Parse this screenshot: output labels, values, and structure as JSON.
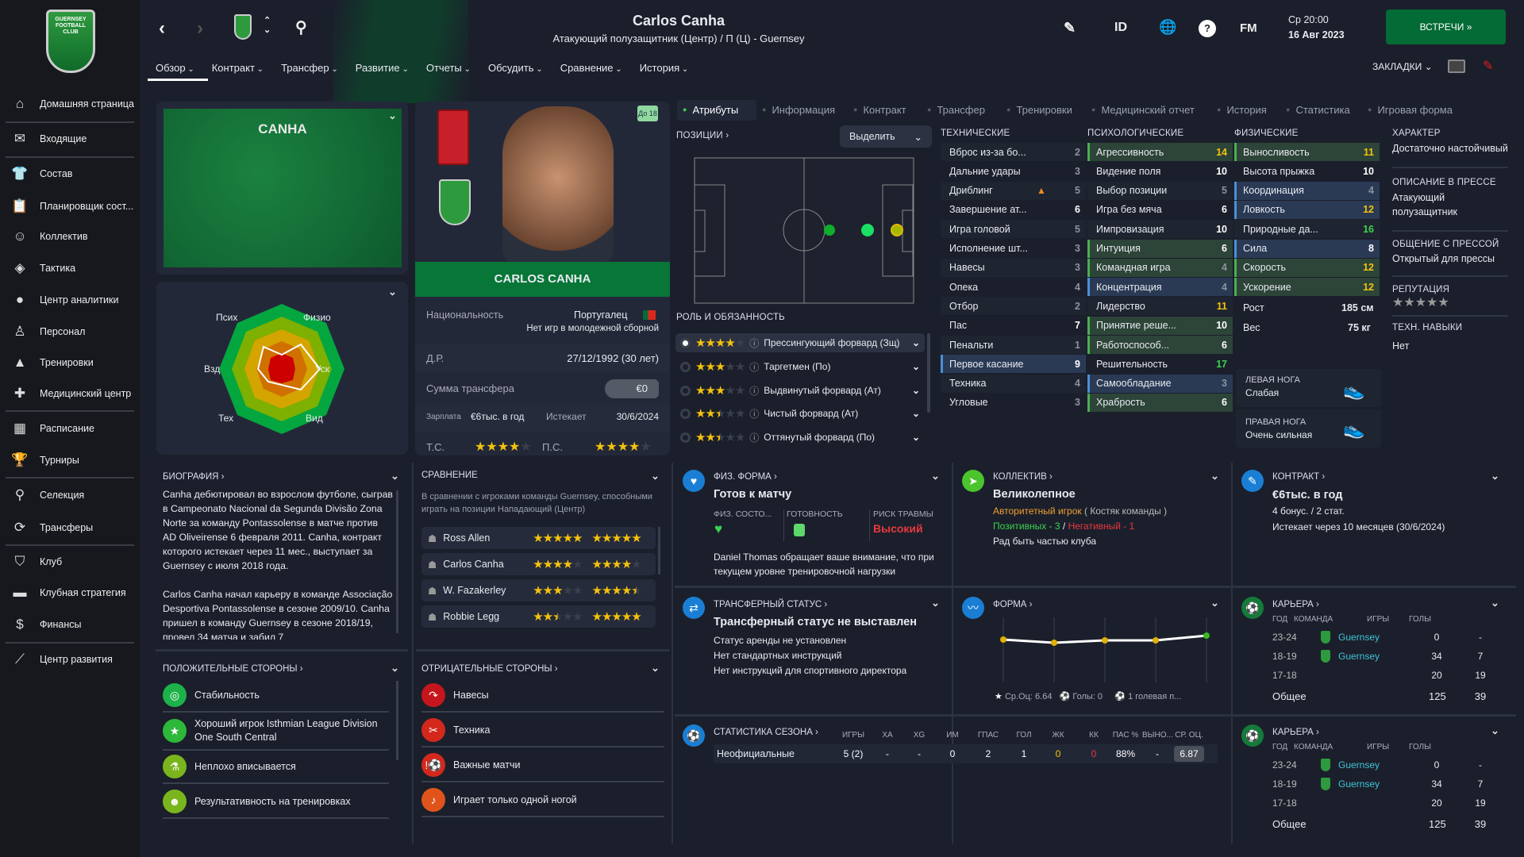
{
  "sidebar": {
    "club_logo_text": "GUERNSEY FOOTBALL CLUB",
    "items": [
      {
        "label": "Домашняя страница",
        "icon": "home-icon",
        "glyph": "⌂"
      },
      {
        "label": "Входящие",
        "icon": "mail-icon",
        "glyph": "✉"
      },
      {
        "label": "Состав",
        "icon": "shirt-icon",
        "glyph": "👕"
      },
      {
        "label": "Планировщик сост...",
        "icon": "clipboard-icon",
        "glyph": "📋"
      },
      {
        "label": "Коллектив",
        "icon": "brain-head-icon",
        "glyph": "☺"
      },
      {
        "label": "Тактика",
        "icon": "tactics-icon",
        "glyph": "◈"
      },
      {
        "label": "Центр аналитики",
        "icon": "analytics-icon",
        "glyph": "●"
      },
      {
        "label": "Персонал",
        "icon": "staff-icon",
        "glyph": "♙"
      },
      {
        "label": "Тренировки",
        "icon": "cone-icon",
        "glyph": "▲"
      },
      {
        "label": "Медицинский центр",
        "icon": "medkit-icon",
        "glyph": "✚"
      },
      {
        "label": "Расписание",
        "icon": "calendar-icon",
        "glyph": "▦"
      },
      {
        "label": "Турниры",
        "icon": "trophy-icon",
        "glyph": "🏆"
      },
      {
        "label": "Селекция",
        "icon": "binoculars-icon",
        "glyph": "⚲"
      },
      {
        "label": "Трансферы",
        "icon": "transfer-icon",
        "glyph": "⟳"
      },
      {
        "label": "Клуб",
        "icon": "shield-icon",
        "glyph": "⛉"
      },
      {
        "label": "Клубная стратегия",
        "icon": "briefcase-icon",
        "glyph": "▬"
      },
      {
        "label": "Финансы",
        "icon": "money-icon",
        "glyph": "$"
      },
      {
        "label": "Центр развития",
        "icon": "growth-icon",
        "glyph": "⟋"
      }
    ]
  },
  "header": {
    "title": "Carlos Canha",
    "subtitle": "Атакующий полузащитник (Центр) / П (Ц) - Guernsey",
    "tabs": [
      "Обзор",
      "Контракт",
      "Трансфер",
      "Развитие",
      "Отчеты",
      "Обсудить",
      "Сравнение",
      "История"
    ],
    "icons": {
      "id": "ID",
      "fm": "FM",
      "help": "?"
    },
    "day_time": "Ср 20:00",
    "date": "16 Авг 2023",
    "meetings_button": "ВСТРЕЧИ »",
    "bookmarks": "ЗАКЛАДКИ"
  },
  "kit": {
    "name": "CANHA"
  },
  "radar": {
    "labels": [
      "Псих",
      "Физио",
      "Уск",
      "Вид",
      "Тех",
      "Взд"
    ]
  },
  "player_card": {
    "badge": "До 18",
    "name": "CARLOS CANHA",
    "nationality_label": "Национальность",
    "nationality": "Португалец",
    "youth_caps": "Нет игр в молодежной сборной",
    "dob_label": "Д.Р.",
    "dob": "27/12/1992 (30 лет)",
    "transfer_label": "Сумма трансфера",
    "transfer_value": "€0",
    "wage_label": "Зарплата",
    "wage": "€6тыс. в год",
    "expires_label": "Истекает",
    "expires": "30/6/2024",
    "ca_label": "Т.С.",
    "ca_stars": 4,
    "pa_label": "П.С.",
    "pa_stars": 4
  },
  "subtabs": [
    "Атрибуты",
    "Информация",
    "Контракт",
    "Трансфер",
    "Тренировки",
    "Медицинский отчет",
    "История",
    "Статистика",
    "Игровая форма"
  ],
  "positions": {
    "title": "ПОЗИЦИИ ›",
    "highlight_button": "Выделить",
    "roles_title": "РОЛЬ И ОБЯЗАННОСТЬ",
    "roles": [
      {
        "name": "Прессингующий форвард (Зщ)",
        "stars": 4
      },
      {
        "name": "Таргетмен (По)",
        "stars": 3
      },
      {
        "name": "Выдвинутый форвард (Ат)",
        "stars": 3
      },
      {
        "name": "Чистый форвард (Ат)",
        "stars": 2.5
      },
      {
        "name": "Оттянутый форвард (По)",
        "stars": 2.5
      }
    ]
  },
  "attributes": {
    "technical_title": "ТЕХНИЧЕСКИЕ",
    "mental_title": "ПСИХОЛОГИЧЕСКИЕ",
    "physical_title": "ФИЗИЧЕСКИЕ",
    "technical": [
      [
        "Вброс из-за бо...",
        2,
        ""
      ],
      [
        "Дальние удары",
        3,
        ""
      ],
      [
        "Дриблинг",
        5,
        ""
      ],
      [
        "Завершение ат...",
        6,
        ""
      ],
      [
        "Игра головой",
        5,
        ""
      ],
      [
        "Исполнение шт...",
        3,
        ""
      ],
      [
        "Навесы",
        3,
        ""
      ],
      [
        "Опека",
        4,
        ""
      ],
      [
        "Отбор",
        2,
        ""
      ],
      [
        "Пас",
        7,
        ""
      ],
      [
        "Пенальти",
        1,
        ""
      ],
      [
        "Первое касание",
        9,
        "sec"
      ],
      [
        "Техника",
        4,
        ""
      ],
      [
        "Угловые",
        3,
        ""
      ]
    ],
    "mental": [
      [
        "Агрессивность",
        14,
        "key"
      ],
      [
        "Видение поля",
        10,
        ""
      ],
      [
        "Выбор позиции",
        5,
        ""
      ],
      [
        "Игра без мяча",
        6,
        ""
      ],
      [
        "Импровизация",
        10,
        ""
      ],
      [
        "Интуиция",
        6,
        "key"
      ],
      [
        "Командная игра",
        4,
        "key"
      ],
      [
        "Концентрация",
        4,
        "sec"
      ],
      [
        "Лидерство",
        11,
        ""
      ],
      [
        "Принятие реше...",
        10,
        "key"
      ],
      [
        "Работоспособ...",
        6,
        "key"
      ],
      [
        "Решительность",
        17,
        ""
      ],
      [
        "Самообладание",
        3,
        "sec"
      ],
      [
        "Храбрость",
        6,
        "key"
      ]
    ],
    "physical": [
      [
        "Выносливость",
        11,
        "key"
      ],
      [
        "Высота прыжка",
        10,
        ""
      ],
      [
        "Координация",
        4,
        "sec"
      ],
      [
        "Ловкость",
        12,
        "sec"
      ],
      [
        "Природные да...",
        16,
        ""
      ],
      [
        "Сила",
        8,
        "sec"
      ],
      [
        "Скорость",
        12,
        "key"
      ],
      [
        "Ускорение",
        12,
        "key"
      ]
    ],
    "height_label": "Рост",
    "height": "185 см",
    "weight_label": "Вес",
    "weight": "75 кг",
    "left_foot_label": "ЛЕВАЯ НОГА",
    "left_foot": "Слабая",
    "right_foot_label": "ПРАВАЯ НОГА",
    "right_foot": "Очень сильная"
  },
  "character": {
    "personality_label": "ХАРАКТЕР",
    "personality": "Достаточно настойчивый",
    "media_desc_label": "ОПИСАНИЕ В ПРЕССЕ",
    "media_desc": "Атакующий полузащитник",
    "media_handling_label": "ОБЩЕНИЕ С ПРЕССОЙ",
    "media_handling": "Открытый для прессы",
    "reputation_label": "РЕПУТАЦИЯ",
    "reputation_stars": 5,
    "traits_label": "ТЕХН. НАВЫКИ",
    "traits": "Нет"
  },
  "biography": {
    "title": "БИОГРАФИЯ ›",
    "p1": "Canha дебютировал во взрослом футболе, сыграв в Campeonato Nacional da Segunda Divisão Zona Norte за команду Pontassolense в матче против AD Oliveirense 6 февраля 2011. Canha, контракт которого истекает через 11 мес., выступает за Guernsey с июля 2018 года.",
    "p2": "Carlos Canha начал карьеру в команде Associação Desportiva Pontassolense в сезоне 2009/10. Canha пришел в команду Guernsey в сезоне 2018/19, провел 34 матча и забил 7"
  },
  "comparison": {
    "title": "СРАВНЕНИЕ",
    "desc": "В сравнении с игроками команды Guernsey, способными играть на позиции Нападающий (Центр)",
    "rows": [
      {
        "name": "Ross Allen",
        "ca": 5,
        "pa": 5
      },
      {
        "name": "Carlos Canha",
        "ca": 4,
        "pa": 4
      },
      {
        "name": "W. Fazakerley",
        "ca": 3,
        "pa": 4.5
      },
      {
        "name": "Robbie Legg",
        "ca": 2.5,
        "pa": 5
      }
    ]
  },
  "strengths": {
    "title": "ПОЛОЖИТЕЛЬНЫЕ СТОРОНЫ ›",
    "items": [
      {
        "label": "Стабильность",
        "icon": "target-icon",
        "glyph": "◎",
        "color": "#1db14a"
      },
      {
        "label": "Хороший игрок Isthmian League Division One South Central",
        "icon": "star-icon",
        "glyph": "★",
        "color": "#2db83a"
      },
      {
        "label": "Неплохо вписывается",
        "icon": "flask-icon",
        "glyph": "⚗",
        "color": "#7ab51d"
      },
      {
        "label": "Результативность на тренировках",
        "icon": "training-icon",
        "glyph": "☻",
        "color": "#7ab51d"
      }
    ]
  },
  "weaknesses": {
    "title": "ОТРИЦАТЕЛЬНЫЕ СТОРОНЫ ›",
    "items": [
      {
        "label": "Навесы",
        "icon": "cross-ball-icon",
        "glyph": "↷",
        "color": "#c4161c"
      },
      {
        "label": "Техника",
        "icon": "technique-icon",
        "glyph": "✂",
        "color": "#d4281c"
      },
      {
        "label": "Важные матчи",
        "icon": "big-match-icon",
        "glyph": "!⚽",
        "color": "#d4281c"
      },
      {
        "label": "Играет только одной ногой",
        "icon": "foot-icon",
        "glyph": "♪",
        "color": "#e0541c"
      }
    ]
  },
  "fitness": {
    "title": "ФИЗ. ФОРМА ›",
    "status": "Готов к матчу",
    "condition_label": "ФИЗ. СОСТО...",
    "sharpness_label": "ГОТОВНОСТЬ",
    "injury_risk_label": "РИСК ТРАВМЫ",
    "injury_risk": "Высокий",
    "note": "Daniel Thomas обращает ваше внимание, что при текущем уровне тренировочной нагрузки"
  },
  "dynamics": {
    "title": "КОЛЛЕКТИВ ›",
    "status": "Великолепное",
    "influence": "Авторитетный игрок",
    "group": "( Костяк команды )",
    "positive": "Позитивных - 3",
    "separator": "/",
    "negative": "Негативный - 1",
    "happiness": "Рад быть частью клуба"
  },
  "contract": {
    "title": "КОНТРАКТ ›",
    "wage": "€6тыс. в год",
    "bonuses": "4 бонус. / 2 стат.",
    "expiry": "Истекает через 10 месяцев  (30/6/2024)"
  },
  "transfer_status": {
    "title": "ТРАНСФЕРНЫЙ СТАТУС ›",
    "status": "Трансферный статус не выставлен",
    "lines": [
      "Статус аренды не установлен",
      "Нет стандартных инструкций",
      "Нет инструкций для спортивного директора"
    ]
  },
  "form": {
    "title": "ФОРМА ›",
    "avg_rating": "Ср.Оц: 6.64",
    "goals": "Голы: 0",
    "assists": "1 голевая п..."
  },
  "career": {
    "title": "КАРЬЕРА ›",
    "headers": [
      "ГОД",
      "КОМАНДА",
      "ИГРЫ",
      "ГОЛЫ"
    ],
    "rows": [
      [
        "23-24",
        "Guernsey",
        "0",
        "-"
      ],
      [
        "18-19",
        "Guernsey",
        "34",
        "7"
      ],
      [
        "17-18",
        "",
        "20",
        "19"
      ]
    ],
    "total": [
      "Общее",
      "125",
      "39"
    ]
  },
  "season_stats": {
    "title": "СТАТИСТИКА СЕЗОНА ›",
    "headers": [
      "ИГРЫ",
      "ХА",
      "XG",
      "ИМ",
      "ГПАС",
      "ГОЛ",
      "ЖК",
      "КК",
      "ПАС %",
      "ВЫНО...",
      "СР. ОЦ."
    ],
    "row_label": "Неофициальные",
    "values": [
      "5 (2)",
      "-",
      "-",
      "0",
      "2",
      "1",
      "0",
      "0",
      "88%",
      "-",
      "6.87"
    ]
  },
  "colors": {
    "accent_green": "#036b36",
    "key_attr": "#2d4438",
    "secondary_attr": "#2a3a55",
    "yellow": "#f4c20d",
    "high_green": "#3ad34f",
    "danger": "#e8383d"
  }
}
